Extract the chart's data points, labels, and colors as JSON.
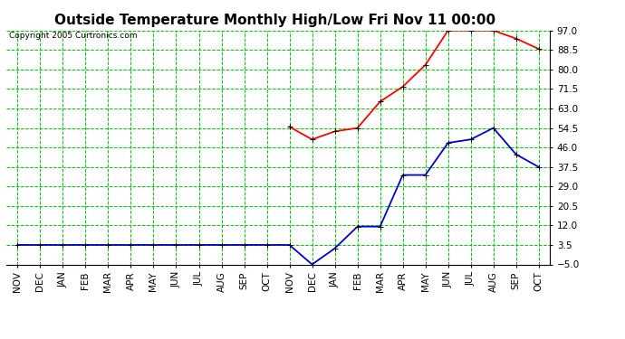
{
  "title": "Outside Temperature Monthly High/Low Fri Nov 11 00:00",
  "copyright": "Copyright 2005 Curtronics.com",
  "x_labels": [
    "NOV",
    "DEC",
    "JAN",
    "FEB",
    "MAR",
    "APR",
    "MAY",
    "JUN",
    "JUL",
    "AUG",
    "SEP",
    "OCT",
    "NOV",
    "DEC",
    "JAN",
    "FEB",
    "MAR",
    "APR",
    "MAY",
    "JUN",
    "JUL",
    "AUG",
    "SEP",
    "OCT"
  ],
  "y_ticks": [
    -5.0,
    3.5,
    12.0,
    20.5,
    29.0,
    37.5,
    46.0,
    54.5,
    63.0,
    71.5,
    80.0,
    88.5,
    97.0
  ],
  "high_data": {
    "indices": [
      12,
      13,
      14,
      15,
      16,
      17,
      18,
      19,
      20,
      21,
      22,
      23
    ],
    "values": [
      55.0,
      49.5,
      53.0,
      54.5,
      66.0,
      72.5,
      82.0,
      97.0,
      97.0,
      97.0,
      93.5,
      89.0
    ]
  },
  "low_data": {
    "indices": [
      0,
      1,
      2,
      3,
      4,
      5,
      6,
      7,
      8,
      9,
      10,
      11,
      12,
      13,
      14,
      15,
      16,
      17,
      18,
      19,
      20,
      21,
      22,
      23
    ],
    "values": [
      3.5,
      3.5,
      3.5,
      3.5,
      3.5,
      3.5,
      3.5,
      3.5,
      3.5,
      3.5,
      3.5,
      3.5,
      3.5,
      -5.0,
      2.0,
      11.5,
      11.5,
      34.0,
      34.0,
      48.0,
      49.5,
      54.5,
      43.0,
      37.5
    ]
  },
  "high_color": "#ff0000",
  "low_color": "#0000cc",
  "bg_color": "#ffffff",
  "grid_color": "#00cc00",
  "title_fontsize": 11,
  "tick_fontsize": 7.5,
  "marker": "+",
  "marker_size": 5,
  "linewidth": 1.3
}
